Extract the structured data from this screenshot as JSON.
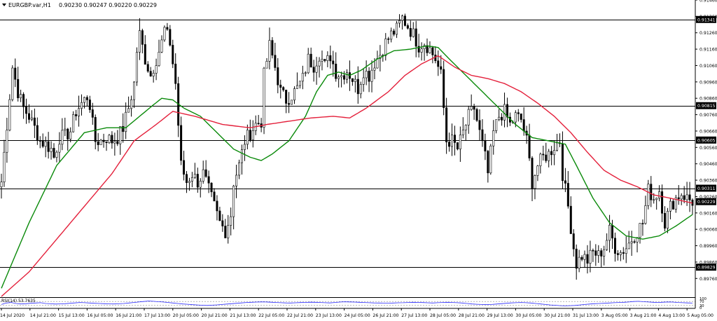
{
  "header": {
    "symbol_label": "EURGBP.var,H1",
    "ohlc_values": "0.90230 0.90247 0.90220 0.90229",
    "menu_arrow_icon": "triangle-down-icon"
  },
  "colors": {
    "background": "#ffffff",
    "candle": "#000000",
    "bull_fill": "#ffffff",
    "bear_fill": "#000000",
    "ma_fast": "#0a8a0a",
    "ma_slow": "#e4203b",
    "rsi_line": "#2a2aff",
    "level_line": "#000000",
    "grid_dash": "#888888"
  },
  "chart_data": [
    {
      "type": "line",
      "title": "",
      "symbol": "EURGBP.var",
      "timeframe": "H1",
      "ohlc": {
        "open": 0.9023,
        "high": 0.90247,
        "low": 0.9022,
        "close": 0.90229
      },
      "ylim": [
        0.8965,
        0.9146
      ],
      "y_ticks": [
        "0.91460",
        "0.91360",
        "0.91260",
        "0.91160",
        "0.91060",
        "0.90960",
        "0.90860",
        "0.90760",
        "0.90660",
        "0.90560",
        "0.90460",
        "0.90360",
        "0.90260",
        "0.90160",
        "0.90060",
        "0.89960",
        "0.89860",
        "0.89760"
      ],
      "x_ticks": [
        "14 Jul 2020",
        "14 Jul 21:00",
        "15 Jul 13:00",
        "16 Jul 05:00",
        "16 Jul 21:00",
        "17 Jul 13:00",
        "20 Jul 05:00",
        "20 Jul 21:00",
        "21 Jul 13:00",
        "22 Jul 05:00",
        "22 Jul 21:00",
        "23 Jul 13:00",
        "24 Jul 05:00",
        "26 Jul 21:00",
        "27 Jul 13:00",
        "28 Jul 05:00",
        "28 Jul 21:00",
        "29 Jul 13:00",
        "30 Jul 05:00",
        "30 Jul 21:00",
        "31 Jul 13:00",
        "3 Aug 05:00",
        "3 Aug 21:00",
        "4 Aug 13:00",
        "5 Aug 05:00"
      ],
      "levels": [
        {
          "value": 0.91341,
          "label": "0.91341"
        },
        {
          "value": 0.90815,
          "label": "0.90815"
        },
        {
          "value": 0.90605,
          "label": "0.90605"
        },
        {
          "value": 0.90311,
          "label": "0.90311"
        },
        {
          "value": 0.89829,
          "label": "0.89829"
        }
      ],
      "current_price": {
        "value": 0.90229,
        "label": "0.90229"
      },
      "price_path": [
        [
          0,
          0.9035
        ],
        [
          2,
          0.907
        ],
        [
          4,
          0.9105
        ],
        [
          6,
          0.909
        ],
        [
          8,
          0.908
        ],
        [
          10,
          0.9075
        ],
        [
          12,
          0.9068
        ],
        [
          14,
          0.906
        ],
        [
          16,
          0.9058
        ],
        [
          18,
          0.9055
        ],
        [
          19,
          0.905
        ],
        [
          21,
          0.9062
        ],
        [
          23,
          0.9063
        ],
        [
          25,
          0.9066
        ],
        [
          27,
          0.9078
        ],
        [
          29,
          0.9083
        ],
        [
          31,
          0.9087
        ],
        [
          32,
          0.9082
        ],
        [
          33,
          0.907
        ],
        [
          34,
          0.906
        ],
        [
          36,
          0.906
        ],
        [
          38,
          0.9062
        ],
        [
          40,
          0.906
        ],
        [
          42,
          0.9062
        ],
        [
          44,
          0.9068
        ],
        [
          46,
          0.908
        ],
        [
          48,
          0.9095
        ],
        [
          49,
          0.9115
        ],
        [
          50,
          0.9125
        ],
        [
          52,
          0.911
        ],
        [
          54,
          0.91
        ],
        [
          56,
          0.911
        ],
        [
          58,
          0.912
        ],
        [
          59,
          0.9128
        ],
        [
          61,
          0.912
        ],
        [
          63,
          0.9095
        ],
        [
          64,
          0.907
        ],
        [
          65,
          0.9045
        ],
        [
          67,
          0.9035
        ],
        [
          69,
          0.904
        ],
        [
          71,
          0.9035
        ],
        [
          73,
          0.904
        ],
        [
          75,
          0.903
        ],
        [
          77,
          0.902
        ],
        [
          79,
          0.901
        ],
        [
          81,
          0.9005
        ],
        [
          83,
          0.9015
        ],
        [
          84,
          0.9035
        ],
        [
          86,
          0.9045
        ],
        [
          88,
          0.906
        ],
        [
          90,
          0.9065
        ],
        [
          92,
          0.907
        ],
        [
          94,
          0.9072
        ],
        [
          95,
          0.91
        ],
        [
          97,
          0.9118
        ],
        [
          99,
          0.9105
        ],
        [
          101,
          0.909
        ],
        [
          103,
          0.9085
        ],
        [
          105,
          0.9088
        ],
        [
          107,
          0.9092
        ],
        [
          109,
          0.9098
        ],
        [
          111,
          0.911
        ],
        [
          113,
          0.9106
        ],
        [
          115,
          0.9113
        ],
        [
          117,
          0.9106
        ],
        [
          119,
          0.9112
        ],
        [
          121,
          0.9102
        ],
        [
          123,
          0.91
        ],
        [
          125,
          0.9103
        ],
        [
          127,
          0.9098
        ],
        [
          129,
          0.9092
        ],
        [
          131,
          0.9103
        ],
        [
          133,
          0.91
        ],
        [
          135,
          0.9108
        ],
        [
          137,
          0.9113
        ],
        [
          139,
          0.912
        ],
        [
          141,
          0.9125
        ],
        [
          143,
          0.9128
        ],
        [
          145,
          0.9135
        ],
        [
          147,
          0.913
        ],
        [
          149,
          0.9125
        ],
        [
          151,
          0.9118
        ],
        [
          153,
          0.912
        ],
        [
          155,
          0.9116
        ],
        [
          157,
          0.911
        ],
        [
          159,
          0.91
        ],
        [
          160,
          0.908
        ],
        [
          161,
          0.906
        ],
        [
          163,
          0.906
        ],
        [
          165,
          0.9055
        ],
        [
          167,
          0.9065
        ],
        [
          169,
          0.9075
        ],
        [
          171,
          0.908
        ],
        [
          173,
          0.9065
        ],
        [
          175,
          0.905
        ],
        [
          176,
          0.904
        ],
        [
          178,
          0.9065
        ],
        [
          180,
          0.9075
        ],
        [
          182,
          0.9078
        ],
        [
          184,
          0.907
        ],
        [
          186,
          0.9075
        ],
        [
          188,
          0.9073
        ],
        [
          190,
          0.906
        ],
        [
          192,
          0.9035
        ],
        [
          194,
          0.9045
        ],
        [
          196,
          0.905
        ],
        [
          198,
          0.9052
        ],
        [
          200,
          0.9057
        ],
        [
          202,
          0.906
        ],
        [
          203,
          0.904
        ],
        [
          205,
          0.902
        ],
        [
          207,
          0.8995
        ],
        [
          208,
          0.8985
        ],
        [
          210,
          0.899
        ],
        [
          212,
          0.8987
        ],
        [
          214,
          0.8992
        ],
        [
          216,
          0.899
        ],
        [
          218,
          0.8995
        ],
        [
          220,
          0.9005
        ],
        [
          222,
          0.8995
        ],
        [
          224,
          0.8992
        ],
        [
          226,
          0.8995
        ],
        [
          228,
          0.9
        ],
        [
          230,
          0.9005
        ],
        [
          232,
          0.901
        ],
        [
          234,
          0.903
        ],
        [
          236,
          0.9025
        ],
        [
          238,
          0.903
        ],
        [
          240,
          0.901
        ],
        [
          242,
          0.902
        ],
        [
          244,
          0.9025
        ],
        [
          246,
          0.9028
        ],
        [
          248,
          0.9025
        ],
        [
          250,
          0.9023
        ]
      ],
      "series": [
        {
          "points": [
            [
              0,
              0.897
            ],
            [
              10,
              0.901
            ],
            [
              20,
              0.9045
            ],
            [
              30,
              0.9065
            ],
            [
              38,
              0.9068
            ],
            [
              45,
              0.9068
            ],
            [
              50,
              0.9075
            ],
            [
              55,
              0.9082
            ],
            [
              58,
              0.9086
            ],
            [
              62,
              0.9085
            ],
            [
              66,
              0.908
            ],
            [
              72,
              0.9075
            ],
            [
              78,
              0.9065
            ],
            [
              84,
              0.9055
            ],
            [
              90,
              0.905
            ],
            [
              94,
              0.9048
            ],
            [
              98,
              0.9052
            ],
            [
              104,
              0.906
            ],
            [
              110,
              0.9075
            ],
            [
              114,
              0.909
            ],
            [
              118,
              0.91
            ],
            [
              122,
              0.9102
            ],
            [
              126,
              0.91
            ],
            [
              130,
              0.9103
            ],
            [
              136,
              0.911
            ],
            [
              142,
              0.9115
            ],
            [
              148,
              0.9116
            ],
            [
              154,
              0.9118
            ],
            [
              158,
              0.9117
            ],
            [
              162,
              0.911
            ],
            [
              168,
              0.91
            ],
            [
              174,
              0.909
            ],
            [
              180,
              0.908
            ],
            [
              186,
              0.907
            ],
            [
              192,
              0.9062
            ],
            [
              198,
              0.906
            ],
            [
              204,
              0.9058
            ],
            [
              208,
              0.9045
            ],
            [
              214,
              0.9025
            ],
            [
              220,
              0.901
            ],
            [
              226,
              0.9002
            ],
            [
              232,
              0.9
            ],
            [
              238,
              0.9002
            ],
            [
              244,
              0.9008
            ],
            [
              250,
              0.9015
            ]
          ]
        },
        {
          "points": [
            [
              0,
              0.8965
            ],
            [
              10,
              0.898
            ],
            [
              20,
              0.9
            ],
            [
              30,
              0.902
            ],
            [
              40,
              0.904
            ],
            [
              48,
              0.906
            ],
            [
              56,
              0.907
            ],
            [
              62,
              0.9078
            ],
            [
              70,
              0.9075
            ],
            [
              80,
              0.907
            ],
            [
              90,
              0.9068
            ],
            [
              96,
              0.907
            ],
            [
              104,
              0.9072
            ],
            [
              112,
              0.9074
            ],
            [
              120,
              0.9075
            ],
            [
              126,
              0.9074
            ],
            [
              132,
              0.908
            ],
            [
              140,
              0.909
            ],
            [
              146,
              0.91
            ],
            [
              152,
              0.9107
            ],
            [
              158,
              0.9112
            ],
            [
              164,
              0.9105
            ],
            [
              170,
              0.91
            ],
            [
              176,
              0.9098
            ],
            [
              182,
              0.9095
            ],
            [
              188,
              0.909
            ],
            [
              194,
              0.9083
            ],
            [
              200,
              0.9075
            ],
            [
              206,
              0.9065
            ],
            [
              212,
              0.9053
            ],
            [
              218,
              0.9042
            ],
            [
              224,
              0.9036
            ],
            [
              230,
              0.9032
            ],
            [
              236,
              0.9027
            ],
            [
              242,
              0.9025
            ],
            [
              250,
              0.9022
            ]
          ]
        }
      ],
      "rsi": {
        "label": "RSI(14) 53.7635",
        "ylim": [
          0,
          100
        ],
        "ticks": [
          "100",
          "70",
          "30",
          "0"
        ],
        "levels": [
          70,
          30
        ],
        "values": [
          40,
          55,
          60,
          50,
          45,
          48,
          52,
          55,
          58,
          50,
          47,
          44,
          46,
          48,
          52,
          56,
          60,
          58,
          55,
          52,
          50,
          48,
          46,
          45,
          47,
          50,
          55,
          60,
          65,
          70,
          75,
          72,
          68,
          65,
          60,
          55,
          50,
          45,
          42,
          38,
          35,
          32,
          30,
          33,
          36,
          40,
          44,
          48,
          52,
          56,
          60,
          62,
          64,
          66,
          65,
          63,
          60,
          58,
          56,
          55,
          57,
          59,
          61,
          63,
          62,
          60,
          58,
          56,
          60,
          64,
          67,
          66,
          64,
          62,
          60,
          58,
          56,
          55,
          54,
          53,
          55,
          57,
          58,
          60,
          62,
          61,
          59,
          57,
          55,
          58,
          60,
          62,
          60,
          58,
          55,
          50,
          45,
          42,
          40,
          38,
          40,
          44,
          48,
          52,
          56,
          58,
          60,
          58,
          55,
          50,
          45,
          40,
          35,
          32,
          28,
          26,
          28,
          30,
          35,
          40,
          44,
          48,
          50,
          52,
          55,
          58,
          60,
          62,
          65,
          70,
          72,
          68,
          65,
          62,
          60,
          63,
          65,
          64,
          60,
          58,
          56,
          54
        ]
      }
    }
  ]
}
